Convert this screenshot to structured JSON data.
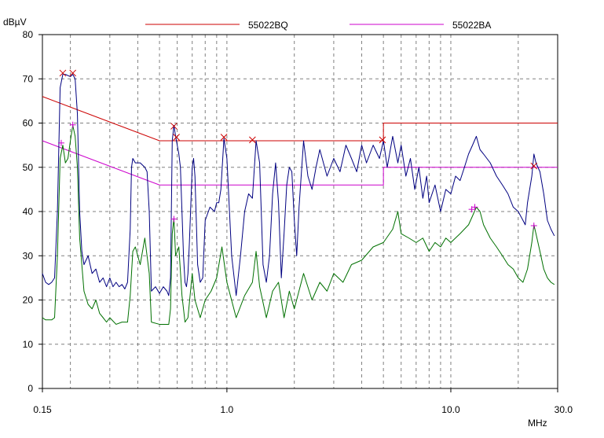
{
  "chart_data": {
    "type": "line",
    "ylabel": "dBµV",
    "xlabel": "MHz",
    "x_scale": "log",
    "xlim": [
      0.15,
      30.0
    ],
    "ylim": [
      0,
      80
    ],
    "grid": true,
    "legend_placement": "top",
    "x_tick_labels": [
      {
        "x": 0.15,
        "label": "0.15"
      },
      {
        "x": 1.0,
        "label": "1.0"
      },
      {
        "x": 10.0,
        "label": "10.0"
      },
      {
        "x": 30.0,
        "label": "30.0"
      }
    ],
    "y_ticks": [
      0,
      10,
      20,
      30,
      40,
      50,
      60,
      70,
      80
    ],
    "limit_lines": [
      {
        "name": "55022BQ",
        "color": "#cc0000",
        "points": [
          [
            0.15,
            66
          ],
          [
            0.5,
            56
          ],
          [
            5.0,
            56
          ],
          [
            5.0,
            60
          ],
          [
            30.0,
            60
          ]
        ]
      },
      {
        "name": "55022BA",
        "color": "#cc00cc",
        "points": [
          [
            0.15,
            56
          ],
          [
            0.5,
            46
          ],
          [
            5.0,
            46
          ],
          [
            5.0,
            50
          ],
          [
            30.0,
            50
          ]
        ]
      }
    ],
    "series": [
      {
        "color": "#000080",
        "points": [
          [
            0.15,
            26
          ],
          [
            0.155,
            24
          ],
          [
            0.16,
            23.5
          ],
          [
            0.165,
            24
          ],
          [
            0.17,
            25
          ],
          [
            0.175,
            40
          ],
          [
            0.18,
            68
          ],
          [
            0.185,
            71
          ],
          [
            0.19,
            71
          ],
          [
            0.2,
            70.5
          ],
          [
            0.205,
            71
          ],
          [
            0.21,
            70
          ],
          [
            0.215,
            62
          ],
          [
            0.22,
            40
          ],
          [
            0.225,
            31
          ],
          [
            0.23,
            28
          ],
          [
            0.24,
            30
          ],
          [
            0.25,
            26
          ],
          [
            0.26,
            27
          ],
          [
            0.27,
            24
          ],
          [
            0.28,
            25
          ],
          [
            0.29,
            23
          ],
          [
            0.3,
            25
          ],
          [
            0.31,
            23
          ],
          [
            0.32,
            24
          ],
          [
            0.33,
            23
          ],
          [
            0.34,
            23.5
          ],
          [
            0.35,
            22.5
          ],
          [
            0.36,
            24
          ],
          [
            0.37,
            36
          ],
          [
            0.375,
            50
          ],
          [
            0.38,
            52
          ],
          [
            0.39,
            51
          ],
          [
            0.41,
            51
          ],
          [
            0.43,
            50
          ],
          [
            0.44,
            49
          ],
          [
            0.45,
            40
          ],
          [
            0.46,
            22
          ],
          [
            0.48,
            23
          ],
          [
            0.5,
            21.5
          ],
          [
            0.52,
            23
          ],
          [
            0.54,
            22
          ],
          [
            0.55,
            21
          ],
          [
            0.56,
            25
          ],
          [
            0.57,
            56
          ],
          [
            0.58,
            59.5
          ],
          [
            0.59,
            57
          ],
          [
            0.6,
            55
          ],
          [
            0.61,
            53
          ],
          [
            0.62,
            50
          ],
          [
            0.63,
            40
          ],
          [
            0.64,
            30
          ],
          [
            0.65,
            24
          ],
          [
            0.66,
            23
          ],
          [
            0.67,
            26
          ],
          [
            0.68,
            33
          ],
          [
            0.7,
            50
          ],
          [
            0.71,
            52
          ],
          [
            0.72,
            48
          ],
          [
            0.74,
            28
          ],
          [
            0.76,
            24
          ],
          [
            0.78,
            25
          ],
          [
            0.8,
            38
          ],
          [
            0.84,
            41
          ],
          [
            0.88,
            40
          ],
          [
            0.9,
            42
          ],
          [
            0.92,
            42
          ],
          [
            0.94,
            45
          ],
          [
            0.97,
            56.5
          ],
          [
            1.0,
            52
          ],
          [
            1.05,
            30
          ],
          [
            1.1,
            21
          ],
          [
            1.15,
            30
          ],
          [
            1.2,
            40
          ],
          [
            1.25,
            44
          ],
          [
            1.3,
            43
          ],
          [
            1.35,
            56
          ],
          [
            1.4,
            51
          ],
          [
            1.45,
            28
          ],
          [
            1.5,
            24
          ],
          [
            1.55,
            30
          ],
          [
            1.6,
            44
          ],
          [
            1.65,
            51
          ],
          [
            1.7,
            42
          ],
          [
            1.75,
            25
          ],
          [
            1.8,
            35
          ],
          [
            1.85,
            46
          ],
          [
            1.9,
            50
          ],
          [
            1.95,
            49
          ],
          [
            2.0,
            38
          ],
          [
            2.05,
            30
          ],
          [
            2.1,
            41
          ],
          [
            2.2,
            56
          ],
          [
            2.3,
            48
          ],
          [
            2.4,
            45
          ],
          [
            2.5,
            50
          ],
          [
            2.6,
            54
          ],
          [
            2.8,
            48
          ],
          [
            3.0,
            52
          ],
          [
            3.2,
            49
          ],
          [
            3.4,
            55
          ],
          [
            3.6,
            52
          ],
          [
            3.8,
            49
          ],
          [
            4.0,
            55
          ],
          [
            4.2,
            51
          ],
          [
            4.5,
            55
          ],
          [
            4.8,
            52
          ],
          [
            5.0,
            56
          ],
          [
            5.2,
            50
          ],
          [
            5.5,
            57
          ],
          [
            5.8,
            51
          ],
          [
            6.0,
            55
          ],
          [
            6.3,
            48
          ],
          [
            6.6,
            52
          ],
          [
            6.9,
            45
          ],
          [
            7.2,
            50
          ],
          [
            7.5,
            43
          ],
          [
            7.8,
            48
          ],
          [
            8.0,
            42
          ],
          [
            8.5,
            46
          ],
          [
            9.0,
            40
          ],
          [
            9.5,
            45
          ],
          [
            10.0,
            44
          ],
          [
            10.5,
            48
          ],
          [
            11.0,
            47
          ],
          [
            11.5,
            50
          ],
          [
            12.0,
            53
          ],
          [
            12.5,
            55
          ],
          [
            13.0,
            57
          ],
          [
            13.5,
            54
          ],
          [
            14.0,
            53
          ],
          [
            15.0,
            51
          ],
          [
            16.0,
            48
          ],
          [
            17.0,
            46
          ],
          [
            18.0,
            44
          ],
          [
            19.0,
            41
          ],
          [
            20.0,
            40
          ],
          [
            21.0,
            38
          ],
          [
            21.5,
            37
          ],
          [
            22.0,
            42
          ],
          [
            23.0,
            48
          ],
          [
            23.5,
            53
          ],
          [
            24.0,
            51
          ],
          [
            25.0,
            49
          ],
          [
            26.0,
            44
          ],
          [
            27.0,
            38
          ],
          [
            28.0,
            36
          ],
          [
            29.0,
            34.5
          ]
        ]
      },
      {
        "color": "#007000",
        "points": [
          [
            0.15,
            16
          ],
          [
            0.155,
            15.5
          ],
          [
            0.165,
            15.5
          ],
          [
            0.17,
            16
          ],
          [
            0.175,
            30
          ],
          [
            0.18,
            52
          ],
          [
            0.185,
            55
          ],
          [
            0.19,
            51
          ],
          [
            0.195,
            52
          ],
          [
            0.2,
            56
          ],
          [
            0.205,
            59.5
          ],
          [
            0.21,
            57
          ],
          [
            0.215,
            50
          ],
          [
            0.22,
            34
          ],
          [
            0.23,
            22
          ],
          [
            0.24,
            19
          ],
          [
            0.25,
            18
          ],
          [
            0.26,
            20
          ],
          [
            0.27,
            17
          ],
          [
            0.28,
            16
          ],
          [
            0.29,
            15
          ],
          [
            0.3,
            16
          ],
          [
            0.32,
            14.5
          ],
          [
            0.34,
            15
          ],
          [
            0.36,
            15
          ],
          [
            0.37,
            21
          ],
          [
            0.38,
            31
          ],
          [
            0.39,
            32
          ],
          [
            0.41,
            28
          ],
          [
            0.43,
            34
          ],
          [
            0.45,
            26
          ],
          [
            0.46,
            15
          ],
          [
            0.5,
            14.5
          ],
          [
            0.55,
            14.5
          ],
          [
            0.56,
            18
          ],
          [
            0.57,
            35
          ],
          [
            0.58,
            38.5
          ],
          [
            0.59,
            30
          ],
          [
            0.61,
            32
          ],
          [
            0.63,
            21
          ],
          [
            0.65,
            15
          ],
          [
            0.67,
            16
          ],
          [
            0.7,
            26
          ],
          [
            0.72,
            20
          ],
          [
            0.76,
            16
          ],
          [
            0.8,
            20
          ],
          [
            0.85,
            22
          ],
          [
            0.9,
            25
          ],
          [
            0.95,
            32
          ],
          [
            1.0,
            24
          ],
          [
            1.1,
            16
          ],
          [
            1.2,
            21
          ],
          [
            1.3,
            24
          ],
          [
            1.35,
            31
          ],
          [
            1.4,
            23
          ],
          [
            1.5,
            16
          ],
          [
            1.6,
            22
          ],
          [
            1.7,
            24
          ],
          [
            1.8,
            16
          ],
          [
            1.9,
            22
          ],
          [
            2.0,
            18
          ],
          [
            2.2,
            26
          ],
          [
            2.4,
            20
          ],
          [
            2.6,
            24
          ],
          [
            2.8,
            22
          ],
          [
            3.0,
            26
          ],
          [
            3.3,
            24
          ],
          [
            3.6,
            28
          ],
          [
            4.0,
            29
          ],
          [
            4.5,
            32
          ],
          [
            5.0,
            33
          ],
          [
            5.5,
            36
          ],
          [
            5.8,
            40
          ],
          [
            6.0,
            35
          ],
          [
            6.5,
            34
          ],
          [
            7.0,
            33
          ],
          [
            7.5,
            34
          ],
          [
            8.0,
            31
          ],
          [
            8.5,
            33
          ],
          [
            9.0,
            32
          ],
          [
            9.5,
            34
          ],
          [
            10.0,
            33
          ],
          [
            11.0,
            35
          ],
          [
            12.0,
            37
          ],
          [
            12.5,
            39
          ],
          [
            13.0,
            41
          ],
          [
            13.5,
            40
          ],
          [
            14.0,
            37
          ],
          [
            15.0,
            34
          ],
          [
            16.0,
            32
          ],
          [
            17.0,
            30
          ],
          [
            18.0,
            28
          ],
          [
            19.0,
            27
          ],
          [
            20.0,
            25
          ],
          [
            21.0,
            24
          ],
          [
            22.0,
            27
          ],
          [
            23.0,
            33
          ],
          [
            23.5,
            37
          ],
          [
            24.0,
            35
          ],
          [
            25.0,
            31
          ],
          [
            26.0,
            27
          ],
          [
            27.0,
            25
          ],
          [
            28.0,
            24
          ],
          [
            29.0,
            23.5
          ]
        ]
      }
    ],
    "markers": [
      {
        "series": "55022BQ",
        "symbol": "x",
        "points": [
          [
            0.185,
            71.3
          ],
          [
            0.205,
            71.3
          ],
          [
            0.58,
            59.3
          ],
          [
            0.595,
            56.8
          ],
          [
            0.97,
            56.8
          ],
          [
            1.3,
            56.2
          ],
          [
            4.95,
            56.2
          ],
          [
            23.5,
            50.3
          ]
        ]
      },
      {
        "series": "55022BA",
        "symbol": "+",
        "points": [
          [
            0.182,
            55.5
          ],
          [
            0.205,
            59.6
          ],
          [
            0.58,
            38.3
          ],
          [
            12.4,
            40.5
          ],
          [
            12.8,
            41.0
          ],
          [
            23.5,
            36.8
          ]
        ]
      }
    ]
  }
}
